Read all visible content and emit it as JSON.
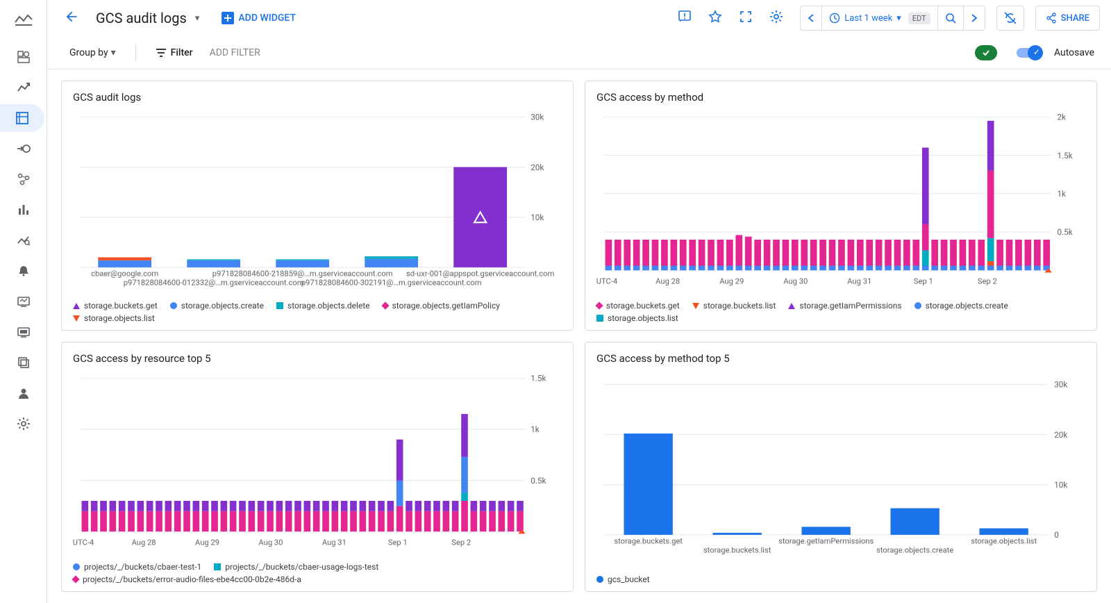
{
  "header": {
    "title": "GCS audit logs",
    "add_widget": "ADD WIDGET",
    "time_range": "Last 1 week",
    "timezone": "EDT",
    "share": "SHARE"
  },
  "filterbar": {
    "group_by": "Group by",
    "filter": "Filter",
    "add_filter": "ADD FILTER",
    "autosave": "Autosave"
  },
  "colors": {
    "blue": "#1a73e8",
    "grid": "#e8eaed",
    "accent_blue": "#4285f4"
  },
  "charts": {
    "c1": {
      "title": "GCS audit logs",
      "type": "bar",
      "ymax": 30000,
      "yticks": [
        0,
        10000,
        20000,
        30000
      ],
      "ytick_labels": [
        "",
        "10k",
        "20k",
        "30k"
      ],
      "categories": [
        "cbaer@google.com",
        "p971828084600-012332@…m.gserviceaccount.com",
        "p971828084600-218859@…m.gserviceaccount.com",
        "p971828084600-302191@…m.gserviceaccount.com",
        "sd-uxr-001@appspot.gserviceaccount.com"
      ],
      "cat_label_rows": [
        [
          "cbaer@google.com",
          "",
          "p971828084600-218859@…m.gserviceaccount.com",
          "",
          "sd-uxr-001@appspot.gserviceaccount.com"
        ],
        [
          "",
          "p971828084600-012332@…m.gserviceaccount.com",
          "",
          "p971828084600-302191@…m.gserviceaccount.com",
          ""
        ]
      ],
      "stacks": [
        [
          {
            "v": 1400,
            "c": "#4285f4"
          },
          {
            "v": 600,
            "c": "#f25022"
          }
        ],
        [
          {
            "v": 1400,
            "c": "#4285f4"
          },
          {
            "v": 200,
            "c": "#00acc1"
          }
        ],
        [
          {
            "v": 1400,
            "c": "#4285f4"
          },
          {
            "v": 200,
            "c": "#00acc1"
          }
        ],
        [
          {
            "v": 1700,
            "c": "#4285f4"
          },
          {
            "v": 500,
            "c": "#00acc1"
          }
        ],
        [
          {
            "v": 20000,
            "c": "#8430ce"
          }
        ]
      ],
      "bar_width_ratio": 0.6,
      "overlay_triangle": {
        "bar_index": 4,
        "color": "#ffffff"
      },
      "legend": [
        {
          "shape": "triangle-up",
          "color": "#8430ce",
          "label": "storage.buckets.get"
        },
        {
          "shape": "circle",
          "color": "#4285f4",
          "label": "storage.objects.create"
        },
        {
          "shape": "square",
          "color": "#00acc1",
          "label": "storage.objects.delete"
        },
        {
          "shape": "diamond",
          "color": "#e52592",
          "label": "storage.objects.getIamPolicy"
        },
        {
          "shape": "triangle-dn",
          "color": "#f25022",
          "label": "storage.objects.list"
        }
      ]
    },
    "c2": {
      "title": "GCS access by method",
      "type": "stacked-bar-time",
      "ymax": 2000,
      "yticks": [
        0,
        500,
        1000,
        1500,
        2000
      ],
      "ytick_labels": [
        "",
        "0.5k",
        "1k",
        "1.5k",
        "2k"
      ],
      "x_left_label": "UTC-4",
      "x_dates": [
        "Aug 28",
        "Aug 29",
        "Aug 30",
        "Aug 31",
        "Sep 1",
        "Sep 2"
      ],
      "n_bars": 48,
      "base_blue_h": 60,
      "base_pink_h": 340,
      "spikes": [
        {
          "i": 34,
          "segs": [
            {
              "v": 60,
              "c": "#4285f4"
            },
            {
              "v": 200,
              "c": "#00acc1"
            },
            {
              "v": 340,
              "c": "#e52592"
            },
            {
              "v": 1000,
              "c": "#8430ce"
            }
          ]
        },
        {
          "i": 41,
          "segs": [
            {
              "v": 60,
              "c": "#4285f4"
            },
            {
              "v": 60,
              "c": "#f25022"
            },
            {
              "v": 300,
              "c": "#00acc1"
            },
            {
              "v": 880,
              "c": "#e52592"
            },
            {
              "v": 650,
              "c": "#8430ce"
            }
          ]
        }
      ],
      "small_bumps": [
        {
          "i": 14,
          "extra": 60
        },
        {
          "i": 15,
          "extra": 40
        }
      ],
      "legend": [
        {
          "shape": "diamond",
          "color": "#e52592",
          "label": "storage.buckets.get"
        },
        {
          "shape": "triangle-dn",
          "color": "#f25022",
          "label": "storage.buckets.list"
        },
        {
          "shape": "triangle-up",
          "color": "#8430ce",
          "label": "storage.getIamPermissions"
        },
        {
          "shape": "circle",
          "color": "#4285f4",
          "label": "storage.objects.create"
        },
        {
          "shape": "square",
          "color": "#00acc1",
          "label": "storage.objects.list"
        }
      ],
      "colors": {
        "blue": "#4285f4",
        "pink": "#e52592"
      }
    },
    "c3": {
      "title": "GCS access by resource top 5",
      "type": "stacked-bar-time",
      "ymax": 1500,
      "yticks": [
        0,
        500,
        1000,
        1500
      ],
      "ytick_labels": [
        "",
        "0.5k",
        "1k",
        "1.5k"
      ],
      "x_left_label": "UTC-4",
      "x_dates": [
        "Aug 28",
        "Aug 29",
        "Aug 30",
        "Aug 31",
        "Sep 1",
        "Sep 2"
      ],
      "n_bars": 48,
      "base_pink_h": 200,
      "base_purple_h": 100,
      "spikes": [
        {
          "i": 34,
          "segs": [
            {
              "v": 250,
              "c": "#e52592"
            },
            {
              "v": 250,
              "c": "#4285f4"
            },
            {
              "v": 400,
              "c": "#8430ce"
            }
          ]
        },
        {
          "i": 41,
          "segs": [
            {
              "v": 300,
              "c": "#e52592"
            },
            {
              "v": 80,
              "c": "#00acc1"
            },
            {
              "v": 350,
              "c": "#4285f4"
            },
            {
              "v": 420,
              "c": "#8430ce"
            }
          ]
        }
      ],
      "legend": [
        {
          "shape": "circle",
          "color": "#4285f4",
          "label": "projects/_/buckets/cbaer-test-1"
        },
        {
          "shape": "square",
          "color": "#00acc1",
          "label": "projects/_/buckets/cbaer-usage-logs-test"
        },
        {
          "shape": "diamond",
          "color": "#e52592",
          "label": "projects/_/buckets/error-audio-files-ebe4cc00-0b2e-486d-a"
        }
      ],
      "colors": {
        "pink": "#e52592",
        "purple": "#8430ce"
      }
    },
    "c4": {
      "title": "GCS access by method top 5",
      "type": "bar",
      "ymax": 30000,
      "yticks": [
        0,
        10000,
        20000,
        30000
      ],
      "ytick_labels": [
        "0",
        "10k",
        "20k",
        "30k"
      ],
      "categories": [
        "storage.buckets.get",
        "storage.buckets.list",
        "storage.getIamPermissions",
        "storage.objects.create",
        "storage.objects.list"
      ],
      "cat_label_rows": [
        [
          "storage.buckets.get",
          "",
          "storage.getIamPermissions",
          "",
          "storage.objects.list"
        ],
        [
          "",
          "storage.buckets.list",
          "",
          "storage.objects.create",
          ""
        ]
      ],
      "values": [
        20200,
        400,
        1600,
        5300,
        1300
      ],
      "bar_color": "#1a73e8",
      "bar_width_ratio": 0.55,
      "legend": [
        {
          "shape": "circle",
          "color": "#1a73e8",
          "label": "gcs_bucket"
        }
      ]
    }
  }
}
